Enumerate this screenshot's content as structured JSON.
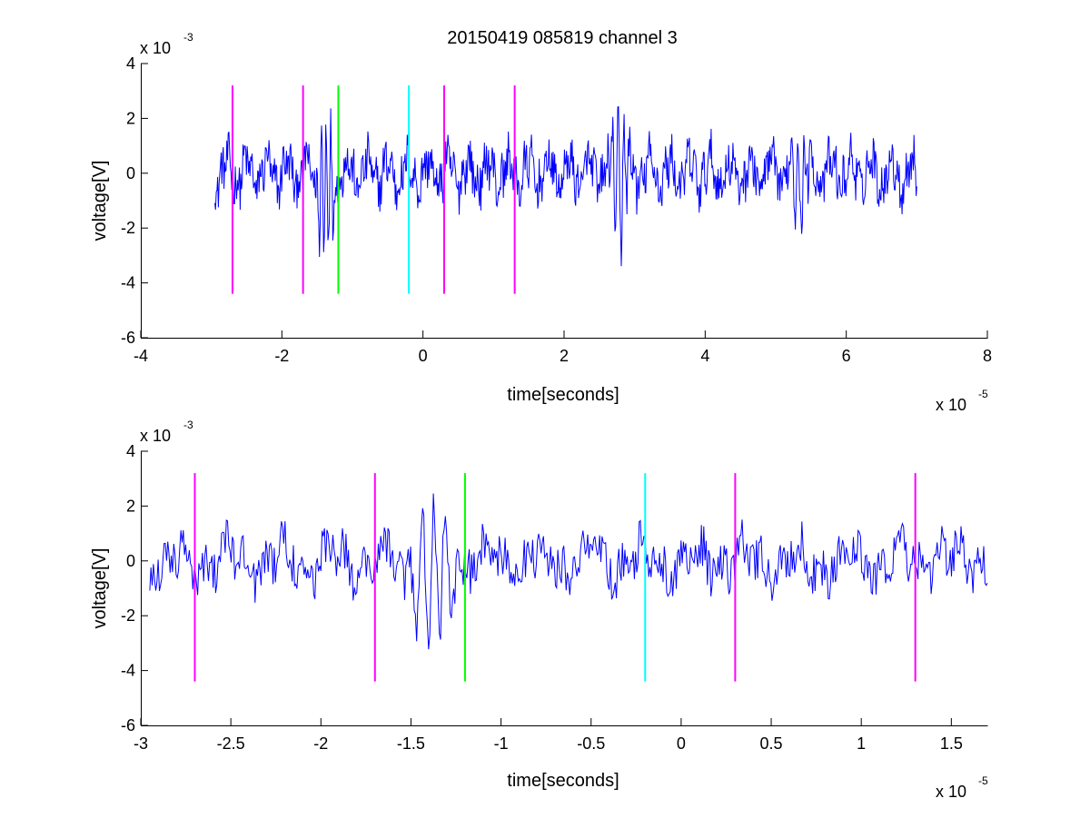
{
  "title": "20150419 085819 channel 3",
  "colors": {
    "trace": "#0000ff",
    "marker_magenta": "#ff00ff",
    "marker_green": "#00ff00",
    "marker_cyan": "#00ffff"
  },
  "chart_data": [
    {
      "type": "line",
      "xlabel": "time[seconds]",
      "ylabel": "voltage[V]",
      "x_exponent_label": "x 10",
      "x_exponent": "-5",
      "y_exponent_label": "x 10",
      "y_exponent": "-3",
      "xlim": [
        -4,
        8
      ],
      "ylim": [
        -6,
        4
      ],
      "xticks": [
        "-4",
        "-2",
        "0",
        "2",
        "4",
        "6",
        "8"
      ],
      "yticks": [
        "-6",
        "-4",
        "-2",
        "0",
        "2",
        "4"
      ],
      "x_ticks_values": [
        -4,
        -2,
        0,
        2,
        4,
        6,
        8
      ],
      "y_ticks_values": [
        -6,
        -4,
        -2,
        0,
        2,
        4
      ],
      "series": [
        {
          "color": "#0000ff",
          "x_range": [
            -2.95,
            7.0
          ],
          "samples": 1000
        }
      ],
      "markers": [
        {
          "x": -2.7,
          "color": "#ff00ff",
          "y_range": [
            -4.4,
            3.2
          ]
        },
        {
          "x": -1.7,
          "color": "#ff00ff",
          "y_range": [
            -4.4,
            3.2
          ]
        },
        {
          "x": -1.2,
          "color": "#00ff00",
          "y_range": [
            -4.4,
            3.2
          ]
        },
        {
          "x": -0.2,
          "color": "#00ffff",
          "y_range": [
            -4.4,
            3.2
          ]
        },
        {
          "x": 0.3,
          "color": "#ff00ff",
          "y_range": [
            -4.4,
            3.2
          ]
        },
        {
          "x": 1.3,
          "color": "#ff00ff",
          "y_range": [
            -4.4,
            3.2
          ]
        }
      ]
    },
    {
      "type": "line",
      "xlabel": "time[seconds]",
      "ylabel": "voltage[V]",
      "x_exponent_label": "x 10",
      "x_exponent": "-5",
      "y_exponent_label": "x 10",
      "y_exponent": "-3",
      "xlim": [
        -3.0,
        1.7
      ],
      "ylim": [
        -6,
        4
      ],
      "xticks": [
        "-3",
        "-2.5",
        "-2",
        "-1.5",
        "-1",
        "-0.5",
        "0",
        "0.5",
        "1",
        "1.5"
      ],
      "yticks": [
        "-6",
        "-4",
        "-2",
        "0",
        "2",
        "4"
      ],
      "x_ticks_values": [
        -3,
        -2.5,
        -2,
        -1.5,
        -1,
        -0.5,
        0,
        0.5,
        1,
        1.5
      ],
      "y_ticks_values": [
        -6,
        -4,
        -2,
        0,
        2,
        4
      ],
      "series": [
        {
          "color": "#0000ff",
          "x_range": [
            -2.95,
            1.7
          ],
          "samples": 700
        }
      ],
      "markers": [
        {
          "x": -2.7,
          "color": "#ff00ff",
          "y_range": [
            -4.4,
            3.2
          ]
        },
        {
          "x": -1.7,
          "color": "#ff00ff",
          "y_range": [
            -4.4,
            3.2
          ]
        },
        {
          "x": -1.2,
          "color": "#00ff00",
          "y_range": [
            -4.4,
            3.2
          ]
        },
        {
          "x": -0.2,
          "color": "#00ffff",
          "y_range": [
            -4.4,
            3.2
          ]
        },
        {
          "x": 0.3,
          "color": "#ff00ff",
          "y_range": [
            -4.4,
            3.2
          ]
        },
        {
          "x": 1.3,
          "color": "#ff00ff",
          "y_range": [
            -4.4,
            3.2
          ]
        }
      ]
    }
  ]
}
